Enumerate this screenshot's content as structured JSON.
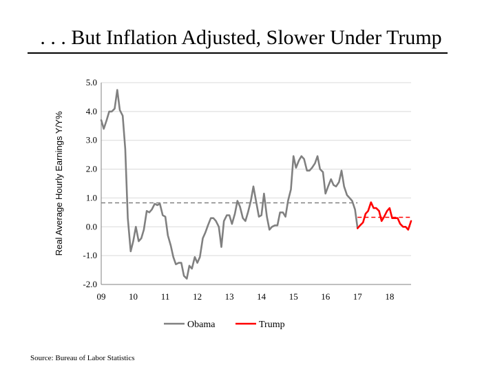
{
  "title": ". . . But Inflation Adjusted, Slower Under Trump",
  "source": "Source: Bureau of Labor Statistics",
  "chart_data": {
    "type": "line",
    "title": ". . . But Inflation Adjusted, Slower Under Trump",
    "xlabel": "",
    "ylabel": "Real Average Hourly Earnings Y/Y%",
    "ylim": [
      -2.0,
      5.0
    ],
    "xlim": [
      2009.0,
      2018.67
    ],
    "yticks": [
      "-2.0",
      "-1.0",
      "0.0",
      "1.0",
      "2.0",
      "3.0",
      "4.0",
      "5.0"
    ],
    "yticks_values": [
      -2,
      -1,
      0,
      1,
      2,
      3,
      4,
      5
    ],
    "xticks": [
      "09",
      "10",
      "11",
      "12",
      "13",
      "14",
      "15",
      "16",
      "17",
      "18"
    ],
    "xticks_values": [
      2009,
      2010,
      2011,
      2012,
      2013,
      2014,
      2015,
      2016,
      2017,
      2018
    ],
    "grid": true,
    "legend_position": "bottom",
    "series": [
      {
        "name": "Obama",
        "color": "#808080",
        "x": [
          2009.0,
          2009.08,
          2009.17,
          2009.25,
          2009.33,
          2009.42,
          2009.5,
          2009.58,
          2009.67,
          2009.75,
          2009.83,
          2009.92,
          2010.0,
          2010.08,
          2010.17,
          2010.25,
          2010.33,
          2010.42,
          2010.5,
          2010.58,
          2010.67,
          2010.75,
          2010.83,
          2010.92,
          2011.0,
          2011.08,
          2011.17,
          2011.25,
          2011.33,
          2011.42,
          2011.5,
          2011.58,
          2011.67,
          2011.75,
          2011.83,
          2011.92,
          2012.0,
          2012.08,
          2012.17,
          2012.25,
          2012.33,
          2012.42,
          2012.5,
          2012.58,
          2012.67,
          2012.75,
          2012.83,
          2012.92,
          2013.0,
          2013.08,
          2013.17,
          2013.25,
          2013.33,
          2013.42,
          2013.5,
          2013.58,
          2013.67,
          2013.75,
          2013.83,
          2013.92,
          2014.0,
          2014.08,
          2014.17,
          2014.25,
          2014.33,
          2014.42,
          2014.5,
          2014.58,
          2014.67,
          2014.75,
          2014.83,
          2014.92,
          2015.0,
          2015.08,
          2015.17,
          2015.25,
          2015.33,
          2015.42,
          2015.5,
          2015.58,
          2015.67,
          2015.75,
          2015.83,
          2015.92,
          2016.0,
          2016.08,
          2016.17,
          2016.25,
          2016.33,
          2016.42,
          2016.5,
          2016.58,
          2016.67,
          2016.75,
          2016.83,
          2016.92,
          2017.0
        ],
        "y": [
          3.7,
          3.4,
          3.7,
          4.0,
          4.0,
          4.1,
          4.75,
          4.05,
          3.85,
          2.7,
          0.3,
          -0.85,
          -0.5,
          0.0,
          -0.5,
          -0.4,
          -0.1,
          0.55,
          0.5,
          0.6,
          0.8,
          0.75,
          0.8,
          0.4,
          0.35,
          -0.3,
          -0.65,
          -1.05,
          -1.3,
          -1.25,
          -1.25,
          -1.7,
          -1.8,
          -1.35,
          -1.45,
          -1.05,
          -1.25,
          -1.05,
          -0.4,
          -0.2,
          0.05,
          0.3,
          0.3,
          0.2,
          0.0,
          -0.7,
          0.2,
          0.4,
          0.4,
          0.1,
          0.45,
          0.9,
          0.7,
          0.3,
          0.2,
          0.5,
          0.9,
          1.4,
          0.9,
          0.35,
          0.4,
          1.15,
          0.35,
          -0.1,
          0.0,
          0.05,
          0.05,
          0.5,
          0.5,
          0.35,
          0.9,
          1.3,
          2.45,
          2.05,
          2.3,
          2.45,
          2.35,
          1.95,
          1.95,
          2.05,
          2.2,
          2.45,
          2.0,
          1.9,
          1.15,
          1.4,
          1.65,
          1.45,
          1.4,
          1.55,
          1.95,
          1.4,
          1.1,
          1.0,
          0.9,
          0.6,
          -0.05
        ]
      },
      {
        "name": "Trump",
        "color": "#ff0000",
        "x": [
          2017.0,
          2017.08,
          2017.17,
          2017.25,
          2017.33,
          2017.42,
          2017.5,
          2017.58,
          2017.67,
          2017.75,
          2017.83,
          2017.92,
          2018.0,
          2018.08,
          2018.17,
          2018.25,
          2018.33,
          2018.42,
          2018.5,
          2018.58,
          2018.67
        ],
        "y": [
          -0.05,
          0.05,
          0.15,
          0.45,
          0.55,
          0.85,
          0.65,
          0.65,
          0.55,
          0.2,
          0.35,
          0.55,
          0.65,
          0.3,
          0.3,
          0.3,
          0.1,
          0.0,
          0.0,
          -0.1,
          0.2
        ]
      }
    ],
    "reference_lines": [
      {
        "series": "Obama",
        "y": 0.83,
        "x_start": 2009.0,
        "x_end": 2017.0,
        "style": "dashed",
        "color": "#808080"
      },
      {
        "series": "Trump",
        "y": 0.33,
        "x_start": 2017.0,
        "x_end": 2018.67,
        "style": "dashed",
        "color": "#ff0000"
      }
    ]
  }
}
